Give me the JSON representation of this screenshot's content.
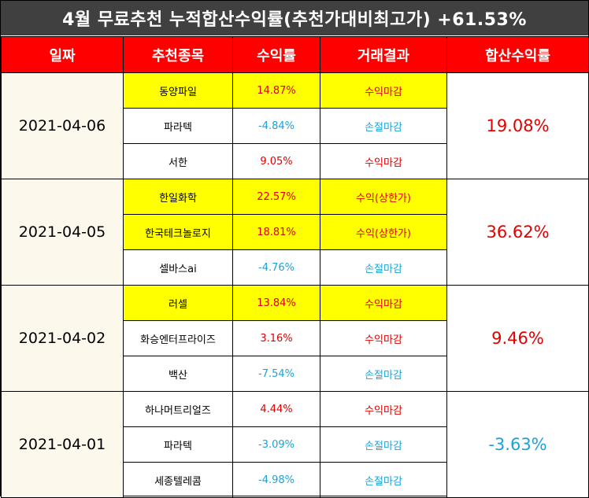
{
  "title": "4월 무료추천 누적합산수익률(추천가대비최고가) +61.53%",
  "colors": {
    "header_bg": "#ff0000",
    "title_bg": "#404040",
    "highlight": "#ffff00",
    "profit": "#e00000",
    "loss": "#1aa3d8",
    "date_bg": "#fdf8ec"
  },
  "headers": [
    "일짜",
    "추천종목",
    "수익률",
    "거래결과",
    "합산수익률"
  ],
  "groups": [
    {
      "date": "2021-04-06",
      "total": "19.08%",
      "total_color": "red",
      "rows": [
        {
          "stock": "동양파일",
          "return": "14.87%",
          "result": "수익마감",
          "highlight": true,
          "color": "red"
        },
        {
          "stock": "파라텍",
          "return": "-4.84%",
          "result": "손절마감",
          "highlight": false,
          "color": "blue"
        },
        {
          "stock": "서한",
          "return": "9.05%",
          "result": "수익마감",
          "highlight": false,
          "color": "red"
        }
      ]
    },
    {
      "date": "2021-04-05",
      "total": "36.62%",
      "total_color": "red",
      "rows": [
        {
          "stock": "한일화학",
          "return": "22.57%",
          "result": "수익(상한가)",
          "highlight": true,
          "color": "red"
        },
        {
          "stock": "한국테크놀로지",
          "return": "18.81%",
          "result": "수익(상한가)",
          "highlight": true,
          "color": "red"
        },
        {
          "stock": "셀바스ai",
          "return": "-4.76%",
          "result": "손절마감",
          "highlight": false,
          "color": "blue"
        }
      ]
    },
    {
      "date": "2021-04-02",
      "total": "9.46%",
      "total_color": "red",
      "rows": [
        {
          "stock": "러셀",
          "return": "13.84%",
          "result": "수익마감",
          "highlight": true,
          "color": "red"
        },
        {
          "stock": "화승엔터프라이즈",
          "return": "3.16%",
          "result": "수익마감",
          "highlight": false,
          "color": "red"
        },
        {
          "stock": "백산",
          "return": "-7.54%",
          "result": "손절마감",
          "highlight": false,
          "color": "blue"
        }
      ]
    },
    {
      "date": "2021-04-01",
      "total": "-3.63%",
      "total_color": "blue",
      "rows": [
        {
          "stock": "하나머트리얼즈",
          "return": "4.44%",
          "result": "수익마감",
          "highlight": false,
          "color": "red"
        },
        {
          "stock": "파라텍",
          "return": "-3.09%",
          "result": "손절마감",
          "highlight": false,
          "color": "blue"
        },
        {
          "stock": "세종텔레콤",
          "return": "-4.98%",
          "result": "손절마감",
          "highlight": false,
          "color": "blue"
        }
      ]
    }
  ]
}
